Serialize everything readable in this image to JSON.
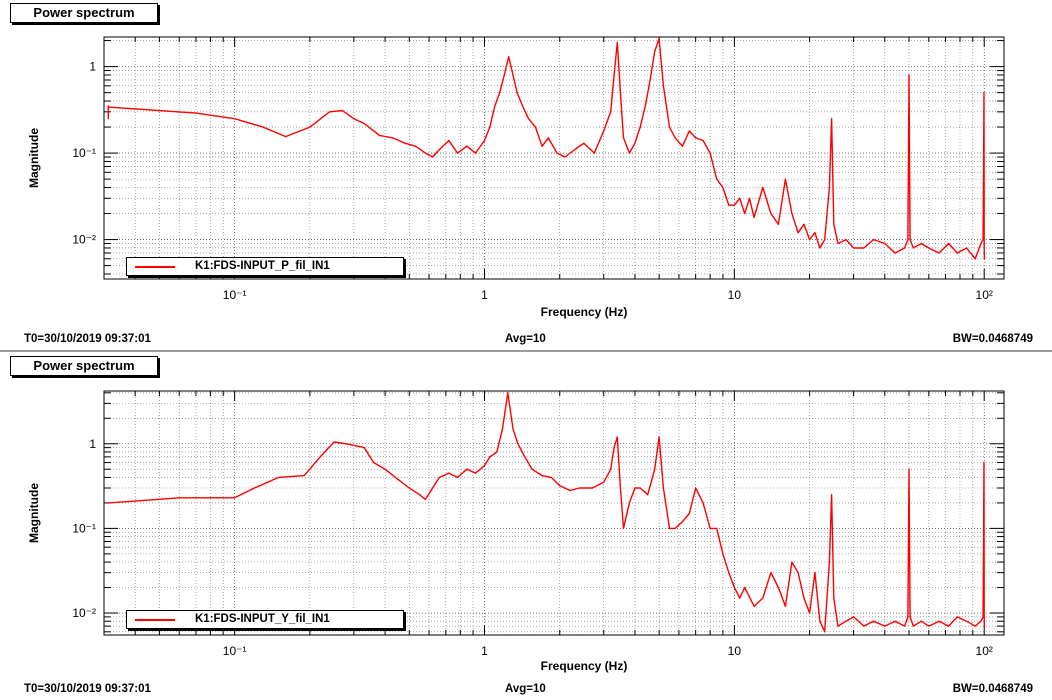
{
  "colors": {
    "trace": "#ff0000",
    "grid": "#000000",
    "background": "#ffffff"
  },
  "panels": [
    {
      "title": "Power spectrum",
      "footer": {
        "t0": "T0=30/10/2019 09:37:01",
        "avg": "Avg=10",
        "bw": "BW=0.0468749"
      }
    },
    {
      "title": "Power spectrum",
      "footer": {
        "t0": "T0=30/10/2019 09:37:01",
        "avg": "Avg=10",
        "bw": "BW=0.0468749"
      }
    }
  ],
  "chart_data": [
    {
      "type": "line",
      "xlabel": "Frequency (Hz)",
      "ylabel": "Magnitude",
      "xscale": "log",
      "yscale": "log",
      "xlim": [
        0.03,
        120
      ],
      "ylim": [
        0.0035,
        2.2
      ],
      "xticks": [
        {
          "v": 0.1,
          "label": "10⁻¹"
        },
        {
          "v": 1,
          "label": "1"
        },
        {
          "v": 10,
          "label": "10"
        },
        {
          "v": 100,
          "label": "10²"
        }
      ],
      "yticks": [
        {
          "v": 0.01,
          "label": "10⁻²"
        },
        {
          "v": 0.1,
          "label": "10⁻¹"
        },
        {
          "v": 1,
          "label": "1"
        }
      ],
      "grid": true,
      "legend": {
        "position": "bottom-left",
        "label": "K1:FDS-INPUT_P_fil_IN1"
      },
      "series": [
        {
          "name": "K1:FDS-INPUT_P_fil_IN1",
          "color": "#ff0000",
          "x": [
            0.0312,
            0.0312,
            0.0313,
            0.05,
            0.07,
            0.1,
            0.13,
            0.16,
            0.2,
            0.24,
            0.27,
            0.3,
            0.33,
            0.38,
            0.43,
            0.48,
            0.53,
            0.58,
            0.62,
            0.66,
            0.72,
            0.78,
            0.85,
            0.92,
            1.0,
            1.05,
            1.1,
            1.15,
            1.2,
            1.25,
            1.3,
            1.35,
            1.42,
            1.5,
            1.6,
            1.7,
            1.8,
            1.95,
            2.1,
            2.3,
            2.5,
            2.75,
            3.0,
            3.2,
            3.3,
            3.4,
            3.5,
            3.6,
            3.8,
            4.0,
            4.2,
            4.4,
            4.6,
            4.8,
            5.0,
            5.2,
            5.5,
            5.8,
            6.2,
            6.6,
            7.0,
            7.5,
            8.0,
            8.5,
            9.0,
            9.5,
            10.0,
            10.5,
            11.0,
            11.5,
            12.0,
            13.0,
            14.0,
            15.0,
            16.0,
            17.0,
            18.0,
            19.0,
            20.0,
            21.0,
            22.0,
            23.0,
            24.0,
            24.5,
            25.0,
            26.0,
            28.0,
            30.0,
            33.0,
            36.0,
            40.0,
            44.0,
            48.0,
            49.5,
            50.0,
            50.5,
            52.0,
            56.0,
            60.0,
            66.0,
            72.0,
            78.0,
            85.0,
            92.0,
            97.0,
            99.0,
            99.8,
            100.0,
            100.2
          ],
          "y": [
            0.25,
            0.35,
            0.34,
            0.31,
            0.29,
            0.25,
            0.2,
            0.155,
            0.2,
            0.3,
            0.31,
            0.25,
            0.22,
            0.16,
            0.15,
            0.13,
            0.12,
            0.1,
            0.09,
            0.11,
            0.14,
            0.1,
            0.12,
            0.1,
            0.14,
            0.2,
            0.35,
            0.5,
            0.8,
            1.3,
            0.8,
            0.5,
            0.35,
            0.25,
            0.2,
            0.12,
            0.15,
            0.1,
            0.09,
            0.11,
            0.13,
            0.1,
            0.18,
            0.3,
            0.8,
            1.9,
            0.5,
            0.15,
            0.1,
            0.13,
            0.2,
            0.35,
            0.7,
            1.5,
            2.1,
            0.6,
            0.2,
            0.15,
            0.12,
            0.18,
            0.15,
            0.14,
            0.1,
            0.05,
            0.04,
            0.025,
            0.025,
            0.03,
            0.02,
            0.03,
            0.018,
            0.04,
            0.02,
            0.015,
            0.05,
            0.02,
            0.012,
            0.015,
            0.01,
            0.012,
            0.008,
            0.01,
            0.04,
            0.25,
            0.015,
            0.009,
            0.01,
            0.008,
            0.008,
            0.01,
            0.009,
            0.007,
            0.008,
            0.01,
            0.8,
            0.01,
            0.008,
            0.009,
            0.008,
            0.007,
            0.009,
            0.007,
            0.008,
            0.006,
            0.009,
            0.01,
            0.5,
            0.008,
            0.006
          ]
        }
      ]
    },
    {
      "type": "line",
      "xlabel": "Frequency (Hz)",
      "ylabel": "Magnitude",
      "xscale": "log",
      "yscale": "log",
      "xlim": [
        0.03,
        120
      ],
      "ylim": [
        0.0055,
        4.2
      ],
      "xticks": [
        {
          "v": 0.1,
          "label": "10⁻¹"
        },
        {
          "v": 1,
          "label": "1"
        },
        {
          "v": 10,
          "label": "10"
        },
        {
          "v": 100,
          "label": "10²"
        }
      ],
      "yticks": [
        {
          "v": 0.01,
          "label": "10⁻²"
        },
        {
          "v": 0.1,
          "label": "10⁻¹"
        },
        {
          "v": 1,
          "label": "1"
        }
      ],
      "grid": true,
      "legend": {
        "position": "bottom-left",
        "label": "K1:FDS-INPUT_Y_fil_IN1"
      },
      "series": [
        {
          "name": "K1:FDS-INPUT_Y_fil_IN1",
          "color": "#ff0000",
          "x": [
            0.0312,
            0.04,
            0.06,
            0.08,
            0.1,
            0.12,
            0.15,
            0.19,
            0.22,
            0.25,
            0.28,
            0.33,
            0.36,
            0.4,
            0.45,
            0.5,
            0.55,
            0.58,
            0.62,
            0.66,
            0.72,
            0.78,
            0.85,
            0.92,
            1.0,
            1.05,
            1.12,
            1.18,
            1.24,
            1.3,
            1.36,
            1.45,
            1.55,
            1.7,
            1.85,
            2.0,
            2.2,
            2.4,
            2.7,
            3.0,
            3.2,
            3.3,
            3.4,
            3.5,
            3.6,
            3.8,
            4.0,
            4.2,
            4.5,
            4.8,
            5.0,
            5.2,
            5.5,
            5.8,
            6.2,
            6.6,
            7.0,
            7.5,
            8.0,
            8.5,
            9.0,
            9.5,
            10.0,
            10.5,
            11.0,
            12.0,
            13.0,
            14.0,
            15.0,
            16.0,
            17.0,
            18.0,
            19.0,
            20.0,
            21.0,
            22.0,
            23.0,
            24.0,
            24.5,
            25.0,
            26.0,
            28.0,
            30.0,
            33.0,
            36.0,
            40.0,
            44.0,
            48.0,
            49.5,
            50.0,
            50.5,
            52.0,
            56.0,
            60.0,
            66.0,
            72.0,
            78.0,
            85.0,
            92.0,
            97.0,
            99.0,
            99.8,
            100.0,
            100.2
          ],
          "y": [
            0.2,
            0.21,
            0.23,
            0.23,
            0.23,
            0.3,
            0.4,
            0.42,
            0.7,
            1.05,
            1.0,
            0.9,
            0.6,
            0.5,
            0.38,
            0.3,
            0.25,
            0.22,
            0.3,
            0.4,
            0.45,
            0.4,
            0.5,
            0.45,
            0.55,
            0.7,
            0.8,
            1.5,
            4.0,
            1.5,
            1.0,
            0.7,
            0.5,
            0.42,
            0.4,
            0.32,
            0.28,
            0.3,
            0.3,
            0.35,
            0.5,
            0.9,
            1.2,
            0.3,
            0.1,
            0.2,
            0.3,
            0.3,
            0.25,
            0.5,
            1.2,
            0.3,
            0.1,
            0.1,
            0.12,
            0.15,
            0.3,
            0.2,
            0.1,
            0.1,
            0.05,
            0.03,
            0.02,
            0.015,
            0.02,
            0.012,
            0.015,
            0.03,
            0.02,
            0.012,
            0.04,
            0.03,
            0.015,
            0.01,
            0.03,
            0.008,
            0.006,
            0.04,
            0.25,
            0.015,
            0.007,
            0.008,
            0.009,
            0.007,
            0.008,
            0.007,
            0.008,
            0.007,
            0.009,
            0.5,
            0.009,
            0.007,
            0.008,
            0.007,
            0.008,
            0.007,
            0.009,
            0.008,
            0.007,
            0.008,
            0.009,
            0.6,
            0.009,
            0.007
          ]
        }
      ]
    }
  ]
}
